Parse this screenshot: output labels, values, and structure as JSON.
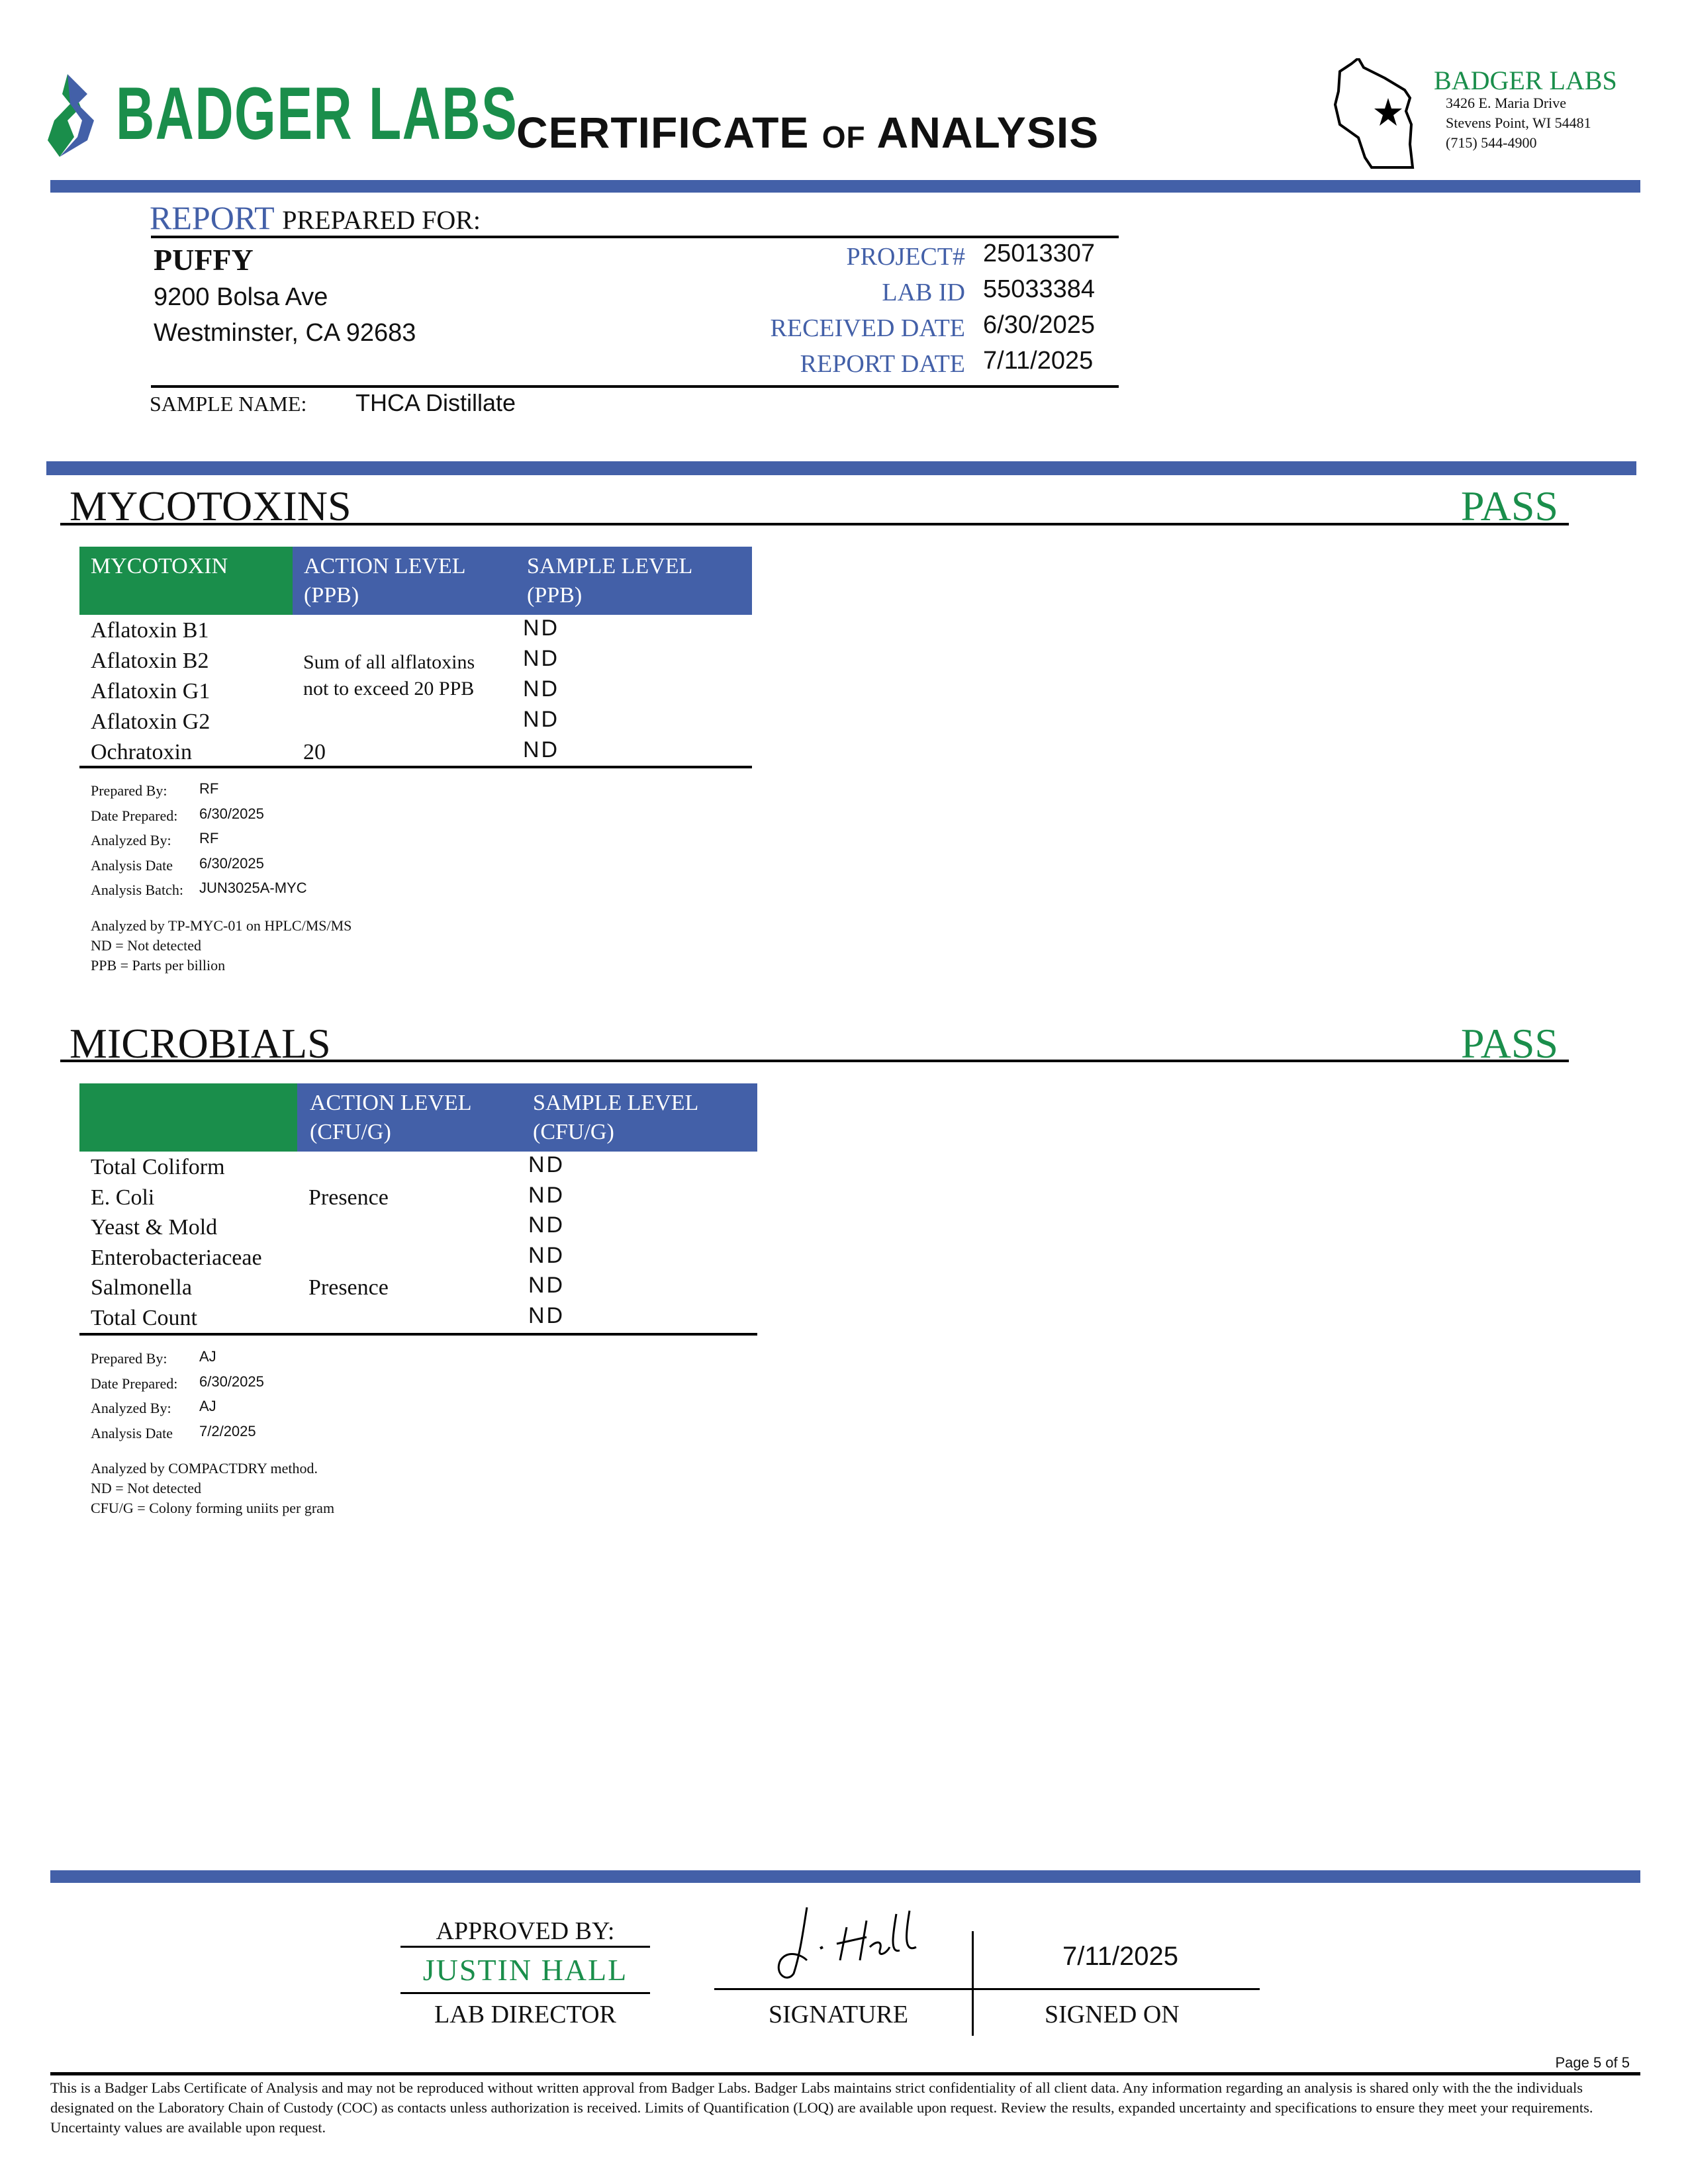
{
  "header": {
    "logo_text": "BADGER LABS",
    "title_main_1": "CERTIFICATE",
    "title_of": "OF",
    "title_main_2": "ANALYSIS",
    "lab_name": "BADGER LABS",
    "address_1": "3426 E. Maria Drive",
    "address_2": "Stevens Point, WI 54481",
    "phone": "(715) 544-4900",
    "brand_green": "#1a8e4b",
    "brand_blue": "#4360a8"
  },
  "report": {
    "label_report": "REPORT",
    "label_prepared_for": "PREPARED FOR:",
    "client_name": "PUFFY",
    "client_address_1": "9200 Bolsa Ave",
    "client_address_2": "Westminster, CA 92683",
    "fields": [
      {
        "label": "PROJECT#",
        "value": "25013307"
      },
      {
        "label": "LAB ID",
        "value": "55033384"
      },
      {
        "label": "RECEIVED DATE",
        "value": "6/30/2025"
      },
      {
        "label": "REPORT DATE",
        "value": "7/11/2025"
      }
    ],
    "sample_name_label": "SAMPLE NAME:",
    "sample_name": "THCA Distillate"
  },
  "mycotoxins": {
    "title": "MYCOTOXINS",
    "status": "PASS",
    "headers": [
      "MYCOTOXIN",
      "ACTION LEVEL",
      "(PPB)",
      "SAMPLE LEVEL",
      "(PPB)"
    ],
    "rows": [
      {
        "name": "Aflatoxin B1",
        "result": "ND"
      },
      {
        "name": "Aflatoxin B2",
        "result": "ND"
      },
      {
        "name": "Aflatoxin G1",
        "result": "ND"
      },
      {
        "name": "Aflatoxin G2",
        "result": "ND"
      },
      {
        "name": "Ochratoxin",
        "action": "20",
        "result": "ND"
      }
    ],
    "aflatoxin_action_1": "Sum of all alflatoxins",
    "aflatoxin_action_2": "not to exceed 20 PPB",
    "meta": [
      {
        "label": "Prepared By:",
        "value": "RF"
      },
      {
        "label": "Date Prepared:",
        "value": "6/30/2025"
      },
      {
        "label": "Analyzed By:",
        "value": "RF"
      },
      {
        "label": "Analysis Date",
        "value": "6/30/2025"
      },
      {
        "label": "Analysis Batch:",
        "value": "JUN3025A-MYC"
      }
    ],
    "notes": [
      "Analyzed by TP-MYC-01 on HPLC/MS/MS",
      "ND = Not detected",
      "PPB = Parts per billion"
    ]
  },
  "microbials": {
    "title": "MICROBIALS",
    "status": "PASS",
    "headers": [
      "ACTION LEVEL",
      "(CFU/G)",
      "SAMPLE LEVEL",
      "(CFU/G)"
    ],
    "rows": [
      {
        "name": "Total Coliform",
        "action": "",
        "result": "ND"
      },
      {
        "name": "E. Coli",
        "action": "Presence",
        "result": "ND"
      },
      {
        "name": "Yeast & Mold",
        "action": "",
        "result": "ND"
      },
      {
        "name": "Enterobacteriaceae",
        "action": "",
        "result": "ND"
      },
      {
        "name": "Salmonella",
        "action": "Presence",
        "result": "ND"
      },
      {
        "name": "Total Count",
        "action": "",
        "result": "ND"
      }
    ],
    "meta": [
      {
        "label": "Prepared By:",
        "value": "AJ"
      },
      {
        "label": "Date Prepared:",
        "value": "6/30/2025"
      },
      {
        "label": "Analyzed By:",
        "value": "AJ"
      },
      {
        "label": "Analysis Date",
        "value": "7/2/2025"
      }
    ],
    "notes": [
      "Analyzed by COMPACTDRY method.",
      "ND = Not detected",
      "CFU/G = Colony forming uniits per gram"
    ]
  },
  "approval": {
    "approved_by_label": "APPROVED BY:",
    "approver_name": "JUSTIN HALL",
    "approver_title": "LAB DIRECTOR",
    "signature_label": "SIGNATURE",
    "signed_on_label": "SIGNED ON",
    "signed_on": "7/11/2025"
  },
  "footer": {
    "page": "Page 5 of 5",
    "disclaimer": "This is a Badger Labs Certificate of Analysis and may not be reproduced without written approval from Badger Labs. Badger Labs maintains strict confidentiality of all client data. Any information regarding an analysis is shared only with the the individuals designated on the Laboratory Chain of Custody (COC) as contacts unless authorization is received. Limits of Quantification (LOQ) are available upon request. Review the results, expanded uncertainty and specifications to ensure they meet your requirements. Uncertainty values are available upon request."
  }
}
